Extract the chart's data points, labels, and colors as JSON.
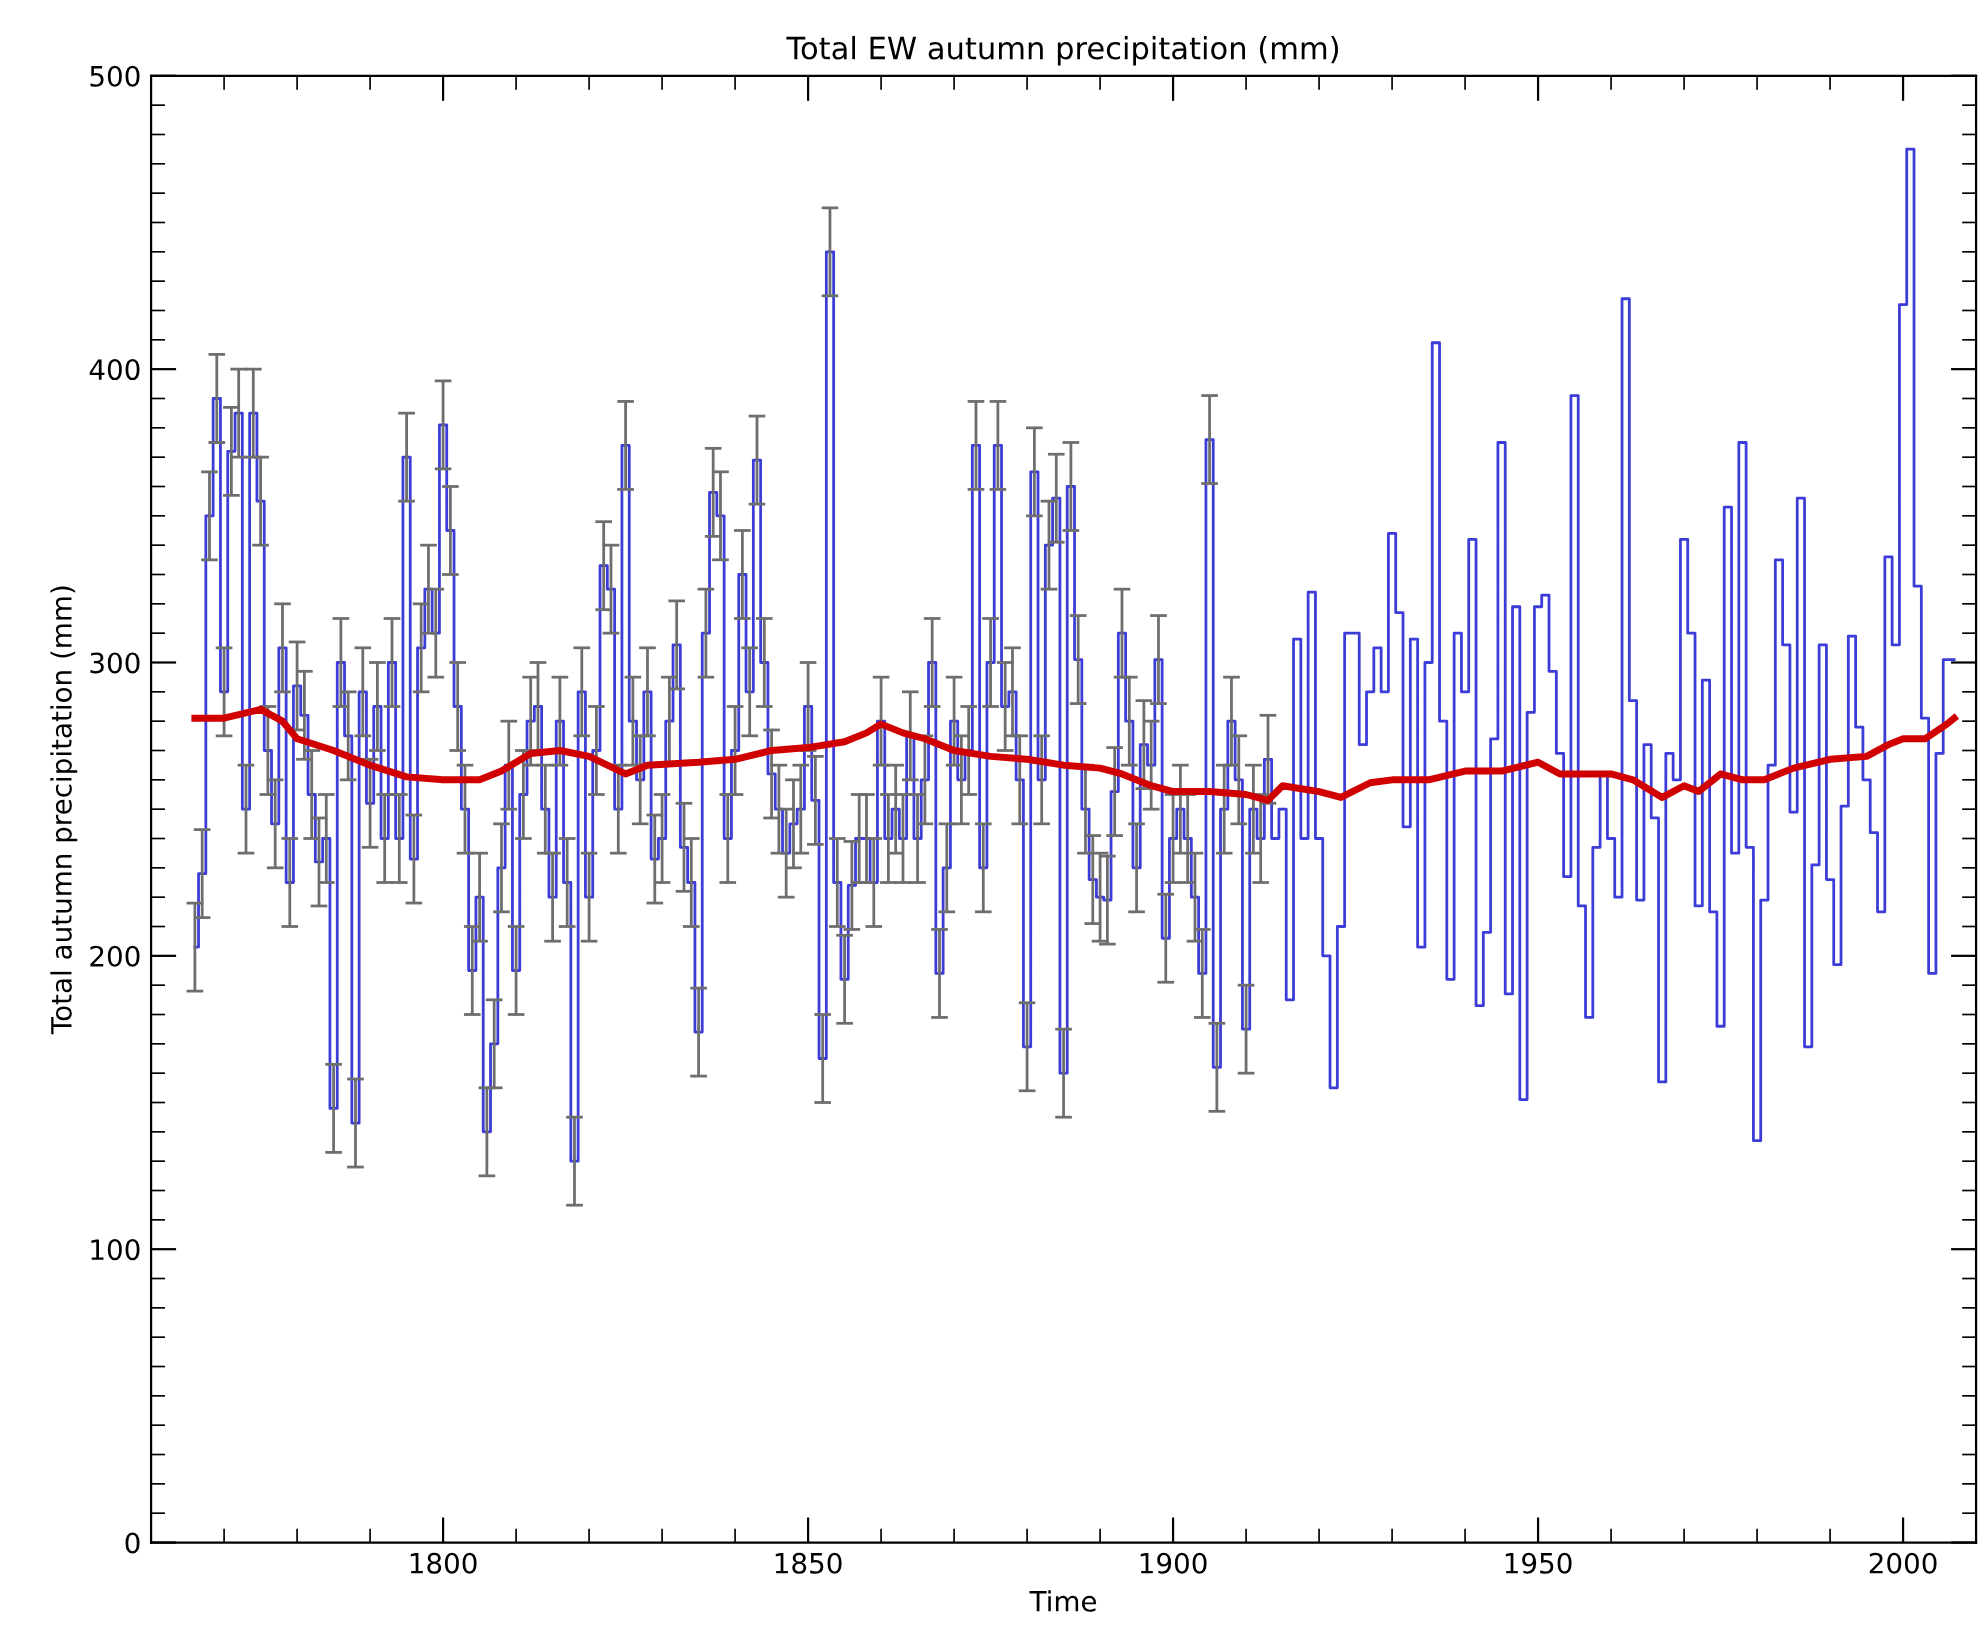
{
  "chart_data": {
    "type": "line",
    "title": "Total EW autumn precipitation (mm)",
    "xlabel": "Time",
    "ylabel": "Total autumn precipitation (mm)",
    "xlim": [
      1760,
      2010
    ],
    "ylim": [
      0,
      500
    ],
    "xticks": [
      {
        "value": 1770,
        "label": null
      },
      {
        "value": 1780,
        "label": null
      },
      {
        "value": 1790,
        "label": null
      },
      1800,
      {
        "value": 1810,
        "label": null
      },
      {
        "value": 1820,
        "label": null
      },
      {
        "value": 1830,
        "label": null
      },
      {
        "value": 1840,
        "label": null
      },
      1850,
      {
        "value": 1860,
        "label": null
      },
      {
        "value": 1870,
        "label": null
      },
      {
        "value": 1880,
        "label": null
      },
      {
        "value": 1890,
        "label": null
      },
      1900,
      {
        "value": 1910,
        "label": null
      },
      {
        "value": 1920,
        "label": null
      },
      {
        "value": 1930,
        "label": null
      },
      {
        "value": 1940,
        "label": null
      },
      1950,
      {
        "value": 1960,
        "label": null
      },
      {
        "value": 1970,
        "label": null
      },
      {
        "value": 1980,
        "label": null
      },
      {
        "value": 1990,
        "label": null
      },
      2000
    ],
    "yticks": [
      0,
      {
        "value": 10,
        "label": null
      },
      {
        "value": 20,
        "label": null
      },
      {
        "value": 30,
        "label": null
      },
      {
        "value": 40,
        "label": null
      },
      {
        "value": 50,
        "label": null
      },
      {
        "value": 60,
        "label": null
      },
      {
        "value": 70,
        "label": null
      },
      {
        "value": 80,
        "label": null
      },
      {
        "value": 90,
        "label": null
      },
      100,
      {
        "value": 110,
        "label": null
      },
      {
        "value": 120,
        "label": null
      },
      {
        "value": 130,
        "label": null
      },
      {
        "value": 140,
        "label": null
      },
      {
        "value": 150,
        "label": null
      },
      {
        "value": 160,
        "label": null
      },
      {
        "value": 170,
        "label": null
      },
      {
        "value": 180,
        "label": null
      },
      {
        "value": 190,
        "label": null
      },
      200,
      {
        "value": 210,
        "label": null
      },
      {
        "value": 220,
        "label": null
      },
      {
        "value": 230,
        "label": null
      },
      {
        "value": 240,
        "label": null
      },
      {
        "value": 250,
        "label": null
      },
      {
        "value": 260,
        "label": null
      },
      {
        "value": 270,
        "label": null
      },
      {
        "value": 280,
        "label": null
      },
      {
        "value": 290,
        "label": null
      },
      300,
      {
        "value": 310,
        "label": null
      },
      {
        "value": 320,
        "label": null
      },
      {
        "value": 330,
        "label": null
      },
      {
        "value": 340,
        "label": null
      },
      {
        "value": 350,
        "label": null
      },
      {
        "value": 360,
        "label": null
      },
      {
        "value": 370,
        "label": null
      },
      {
        "value": 380,
        "label": null
      },
      {
        "value": 390,
        "label": null
      },
      400,
      {
        "value": 410,
        "label": null
      },
      {
        "value": 420,
        "label": null
      },
      {
        "value": 430,
        "label": null
      },
      {
        "value": 440,
        "label": null
      },
      {
        "value": 450,
        "label": null
      },
      {
        "value": 460,
        "label": null
      },
      {
        "value": 470,
        "label": null
      },
      {
        "value": 480,
        "label": null
      },
      {
        "value": 490,
        "label": null
      },
      500
    ],
    "grid": false,
    "series": [
      {
        "type": "step",
        "color": "#3c3cd8",
        "x": [
          1766,
          1767,
          1768,
          1769,
          1770,
          1771,
          1772,
          1773,
          1774,
          1775,
          1776,
          1777,
          1778,
          1779,
          1780,
          1781,
          1782,
          1783,
          1784,
          1785,
          1786,
          1787,
          1788,
          1789,
          1790,
          1791,
          1792,
          1793,
          1794,
          1795,
          1796,
          1797,
          1798,
          1799,
          1800,
          1801,
          1802,
          1803,
          1804,
          1805,
          1806,
          1807,
          1808,
          1809,
          1810,
          1811,
          1812,
          1813,
          1814,
          1815,
          1816,
          1817,
          1818,
          1819,
          1820,
          1821,
          1822,
          1823,
          1824,
          1825,
          1826,
          1827,
          1828,
          1829,
          1830,
          1831,
          1832,
          1833,
          1834,
          1835,
          1836,
          1837,
          1838,
          1839,
          1840,
          1841,
          1842,
          1843,
          1844,
          1845,
          1846,
          1847,
          1848,
          1849,
          1850,
          1851,
          1852,
          1853,
          1854,
          1855,
          1856,
          1857,
          1858,
          1859,
          1860,
          1861,
          1862,
          1863,
          1864,
          1865,
          1866,
          1867,
          1868,
          1869,
          1870,
          1871,
          1872,
          1873,
          1874,
          1875,
          1876,
          1877,
          1878,
          1879,
          1880,
          1881,
          1882,
          1883,
          1884,
          1885,
          1886,
          1887,
          1888,
          1889,
          1890,
          1891,
          1892,
          1893,
          1894,
          1895,
          1896,
          1897,
          1898,
          1899,
          1900,
          1901,
          1902,
          1903,
          1904,
          1905,
          1906,
          1907,
          1908,
          1909,
          1910,
          1911,
          1912,
          1913,
          1914,
          1915,
          1916,
          1917,
          1918,
          1919,
          1920,
          1921,
          1922,
          1923,
          1924,
          1925,
          1926,
          1927,
          1928,
          1929,
          1930,
          1931,
          1932,
          1933,
          1934,
          1935,
          1936,
          1937,
          1938,
          1939,
          1940,
          1941,
          1942,
          1943,
          1944,
          1945,
          1946,
          1947,
          1948,
          1949,
          1950,
          1951,
          1952,
          1953,
          1954,
          1955,
          1956,
          1957,
          1958,
          1959,
          1960,
          1961,
          1962,
          1963,
          1964,
          1965,
          1966,
          1967,
          1968,
          1969,
          1970,
          1971,
          1972,
          1973,
          1974,
          1975,
          1976,
          1977,
          1978,
          1979,
          1980,
          1981,
          1982,
          1983,
          1984,
          1985,
          1986,
          1987,
          1988,
          1989,
          1990,
          1991,
          1992,
          1993,
          1994,
          1995,
          1996,
          1997,
          1998,
          1999,
          2000,
          2001,
          2002,
          2003,
          2004,
          2005,
          2006,
          2007
        ],
        "values": [
          203,
          228,
          350,
          390,
          290,
          372,
          385,
          250,
          385,
          355,
          270,
          245,
          305,
          225,
          292,
          282,
          255,
          232,
          240,
          148,
          300,
          275,
          143,
          290,
          252,
          285,
          240,
          300,
          240,
          370,
          233,
          305,
          325,
          310,
          381,
          345,
          285,
          250,
          195,
          220,
          140,
          170,
          230,
          265,
          195,
          255,
          280,
          285,
          250,
          220,
          280,
          225,
          130,
          290,
          220,
          270,
          333,
          325,
          250,
          374,
          280,
          260,
          290,
          233,
          240,
          280,
          306,
          237,
          225,
          174,
          310,
          358,
          350,
          240,
          270,
          330,
          290,
          369,
          300,
          262,
          250,
          235,
          245,
          250,
          285,
          253,
          165,
          440,
          225,
          192,
          224,
          240,
          240,
          225,
          280,
          240,
          250,
          240,
          275,
          240,
          260,
          300,
          194,
          230,
          280,
          260,
          270,
          374,
          230,
          300,
          374,
          285,
          290,
          260,
          169,
          365,
          260,
          340,
          356,
          160,
          360,
          301,
          250,
          226,
          220,
          219,
          256,
          310,
          280,
          230,
          272,
          265,
          301,
          206,
          240,
          250,
          240,
          220,
          194,
          376,
          162,
          250,
          280,
          260,
          175,
          250,
          240,
          267,
          240,
          250,
          185,
          308,
          240,
          324,
          240,
          200,
          155,
          210,
          310,
          310,
          272,
          290,
          305,
          290,
          344,
          317,
          244,
          308,
          203,
          300,
          409,
          280,
          192,
          310,
          290,
          342,
          183,
          208,
          274,
          375,
          187,
          319,
          151,
          283,
          319,
          323,
          297,
          269,
          227,
          391,
          217,
          179,
          237,
          262,
          240,
          220,
          424,
          287,
          219,
          272,
          247,
          157,
          269,
          260,
          342,
          310,
          217,
          294,
          215,
          176,
          353,
          235,
          375,
          237,
          137,
          219,
          265,
          335,
          306,
          249,
          356,
          169,
          231,
          306,
          226,
          197,
          251,
          309,
          278,
          260,
          242,
          215,
          336,
          306,
          422,
          475,
          326,
          281,
          194,
          269,
          301,
          301
        ],
        "errors": [
          15,
          15,
          15,
          15,
          15,
          15,
          15,
          15,
          15,
          15,
          15,
          15,
          15,
          15,
          15,
          15,
          15,
          15,
          15,
          15,
          15,
          15,
          15,
          15,
          15,
          15,
          15,
          15,
          15,
          15,
          15,
          15,
          15,
          15,
          15,
          15,
          15,
          15,
          15,
          15,
          15,
          15,
          15,
          15,
          15,
          15,
          15,
          15,
          15,
          15,
          15,
          15,
          15,
          15,
          15,
          15,
          15,
          15,
          15,
          15,
          15,
          15,
          15,
          15,
          15,
          15,
          15,
          15,
          15,
          15,
          15,
          15,
          15,
          15,
          15,
          15,
          15,
          15,
          15,
          15,
          15,
          15,
          15,
          15,
          15,
          15,
          15,
          15,
          15,
          15,
          15,
          15,
          15,
          15,
          15,
          15,
          15,
          15,
          15,
          15,
          15,
          15,
          15,
          15,
          15,
          15,
          15,
          15,
          15,
          15,
          15,
          15,
          15,
          15,
          15,
          15,
          15,
          15,
          15,
          15,
          15,
          15,
          15,
          15,
          15,
          15,
          15,
          15,
          15,
          15,
          15,
          15,
          15,
          15,
          15,
          15,
          15,
          15,
          15,
          15,
          15,
          15,
          15,
          15,
          15,
          15,
          15,
          15,
          null,
          null,
          null,
          null,
          null,
          null,
          null,
          null,
          null,
          null,
          null,
          null,
          null,
          null,
          null,
          null,
          null,
          null,
          null,
          null,
          null,
          null,
          null,
          null,
          null,
          null,
          null,
          null,
          null,
          null,
          null,
          null,
          null,
          null,
          null,
          null,
          null,
          null,
          null,
          null,
          null,
          null,
          null,
          null,
          null,
          null,
          null,
          null,
          null,
          null,
          null,
          null,
          null,
          null,
          null,
          null,
          null,
          null,
          null,
          null,
          null,
          null,
          null,
          null,
          null,
          null,
          null,
          null,
          null,
          null,
          null,
          null,
          null,
          null,
          null,
          null,
          null,
          null,
          null,
          null,
          null,
          null,
          null,
          null,
          null,
          null,
          null,
          null,
          null,
          null,
          null,
          null,
          null,
          null
        ]
      },
      {
        "color": "#d00000",
        "x": [
          1766,
          1770,
          1775,
          1778,
          1780,
          1785,
          1790,
          1795,
          1800,
          1805,
          1808,
          1812,
          1816,
          1820,
          1825,
          1828,
          1835,
          1840,
          1845,
          1850,
          1855,
          1858,
          1860,
          1863,
          1866,
          1870,
          1875,
          1880,
          1885,
          1890,
          1893,
          1897,
          1900,
          1905,
          1910,
          1913,
          1915,
          1920,
          1923,
          1927,
          1930,
          1935,
          1940,
          1945,
          1950,
          1953,
          1957,
          1960,
          1963,
          1967,
          1970,
          1972,
          1975,
          1978,
          1981,
          1985,
          1990,
          1995,
          1998,
          2000,
          2003,
          2006,
          2007
        ],
        "values": [
          281,
          281,
          284,
          280,
          274,
          270,
          265,
          261,
          260,
          260,
          263,
          269,
          270,
          268,
          262,
          265,
          266,
          267,
          270,
          271,
          273,
          276,
          279,
          276,
          274,
          270,
          268,
          267,
          265,
          264,
          262,
          258,
          256,
          256,
          255,
          253,
          258,
          256,
          254,
          259,
          260,
          260,
          263,
          263,
          266,
          262,
          262,
          262,
          260,
          254,
          258,
          256,
          262,
          260,
          260,
          264,
          267,
          268,
          272,
          274,
          274,
          279,
          281
        ]
      }
    ]
  }
}
